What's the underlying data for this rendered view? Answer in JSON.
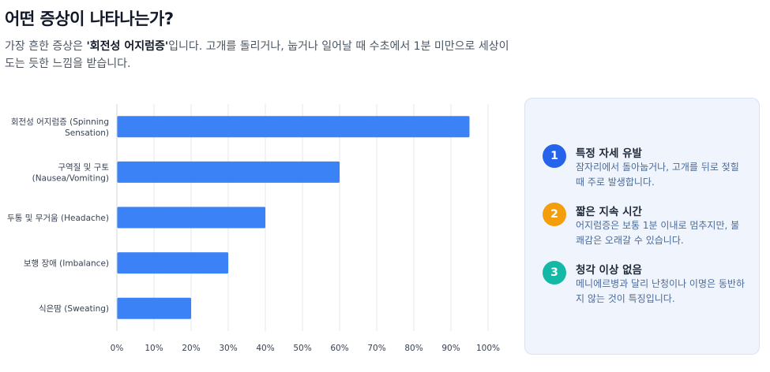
{
  "header": {
    "title": "어떤 증상이 나타나는가?",
    "subtitle_pre": "가장 흔한 증상은 ",
    "subtitle_bold": "'회전성 어지럼증'",
    "subtitle_post": "입니다. 고개를 돌리거나, 눕거나 일어날 때 수초에서 1분 미만으로 세상이 도는 듯한 느낌을 받습니다."
  },
  "chart_data": {
    "type": "bar",
    "orientation": "horizontal",
    "categories": [
      [
        "회전성 어지럼증 (Spinning",
        "Sensation)"
      ],
      [
        "구역질 및 구토",
        "(Nausea/Vomiting)"
      ],
      [
        "두통 및 무거움 (Headache)"
      ],
      [
        "보행 장애 (Imbalance)"
      ],
      [
        "식은땀 (Sweating)"
      ]
    ],
    "values": [
      95,
      60,
      40,
      30,
      20
    ],
    "xlim": [
      0,
      100
    ],
    "xticks": [
      "0%",
      "10%",
      "20%",
      "30%",
      "40%",
      "50%",
      "60%",
      "70%",
      "80%",
      "90%",
      "100%"
    ],
    "bar_color": "#3b82f6",
    "grid": true
  },
  "info_card": {
    "items": [
      {
        "number": "1",
        "title": "특정 자세 유발",
        "desc": "잠자리에서 돌아눕거나, 고개를 뒤로 젖힐 때 주로 발생합니다.",
        "color": "#2563eb"
      },
      {
        "number": "2",
        "title": "짧은 지속 시간",
        "desc": "어지럼증은 보통 1분 이내로 멈추지만, 불쾌감은 오래갈 수 있습니다.",
        "color": "#f59e0b"
      },
      {
        "number": "3",
        "title": "청각 이상 없음",
        "desc": "메니에르병과 달리 난청이나 이명은 동반하지 않는 것이 특징입니다.",
        "color": "#14b8a6"
      }
    ]
  }
}
